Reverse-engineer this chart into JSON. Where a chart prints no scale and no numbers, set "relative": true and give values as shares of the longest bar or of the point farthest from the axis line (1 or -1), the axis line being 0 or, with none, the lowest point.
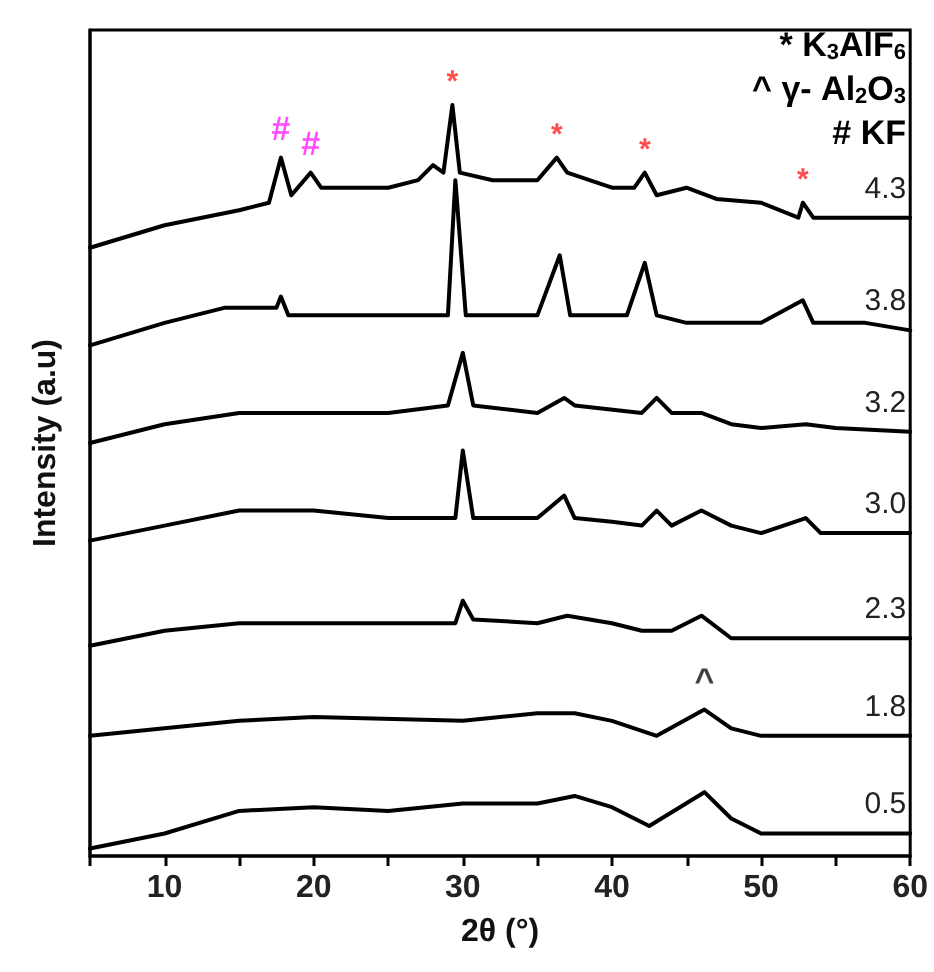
{
  "chart_data": {
    "type": "line",
    "relative": true,
    "xlabel": "2θ (°)",
    "ylabel": "Intensity (a.u)",
    "xlim": [
      5,
      60
    ],
    "xticks": [
      {
        "value": 5,
        "label": null
      },
      10,
      {
        "value": 15,
        "label": null
      },
      20,
      {
        "value": 25,
        "label": null
      },
      30,
      {
        "value": 35,
        "label": null
      },
      40,
      {
        "value": 45,
        "label": null
      },
      50,
      {
        "value": 55,
        "label": null
      },
      60
    ],
    "grid": false,
    "legend": false,
    "marker": "none",
    "line_style": "solid",
    "annotations": [
      {
        "text": "* K$_{3}$AlF$_{6}$"
      },
      {
        "text": "^ γ- Al$_{2}$O$_{3}$"
      },
      {
        "text": "# KF"
      },
      {
        "text": "*",
        "x": 29.3,
        "y": 1.0
      },
      {
        "text": "*",
        "x": 36.3,
        "y": 0.93
      },
      {
        "text": "*",
        "x": 42.2,
        "y": 0.91
      },
      {
        "text": "*",
        "x": 52.8,
        "y": 0.87
      },
      {
        "text": "#",
        "x": 17.8,
        "y": 0.93
      },
      {
        "text": "#",
        "x": 19.8,
        "y": 0.91
      },
      {
        "text": "^",
        "x": 46.2,
        "y": 0.195
      }
    ],
    "series": [
      {
        "name": "4.3",
        "color": "#000000",
        "x": [
          5,
          10,
          15,
          17,
          17.8,
          18.5,
          19.8,
          20.5,
          25,
          27,
          28,
          28.7,
          29.3,
          29.8,
          32,
          35,
          36.3,
          37,
          40,
          41.5,
          42.2,
          43,
          45,
          47,
          50,
          52.5,
          52.8,
          53.5,
          57,
          60
        ],
        "values": [
          0.81,
          0.84,
          0.86,
          0.87,
          0.93,
          0.88,
          0.91,
          0.89,
          0.89,
          0.9,
          0.92,
          0.91,
          1.0,
          0.91,
          0.9,
          0.9,
          0.93,
          0.91,
          0.89,
          0.89,
          0.91,
          0.88,
          0.89,
          0.875,
          0.87,
          0.85,
          0.87,
          0.85,
          0.85,
          0.85
        ]
      },
      {
        "name": "3.8",
        "color": "#000000",
        "x": [
          5,
          10,
          14,
          17.5,
          17.8,
          18.3,
          25,
          29,
          29.5,
          30.2,
          35,
          36.5,
          37.2,
          41,
          42.2,
          43,
          45,
          50,
          52.8,
          53.5,
          57,
          60
        ],
        "values": [
          0.68,
          0.71,
          0.73,
          0.73,
          0.745,
          0.72,
          0.72,
          0.72,
          0.9,
          0.72,
          0.72,
          0.8,
          0.72,
          0.72,
          0.79,
          0.72,
          0.71,
          0.71,
          0.74,
          0.71,
          0.71,
          0.7
        ]
      },
      {
        "name": "3.2",
        "color": "#000000",
        "x": [
          5,
          10,
          15,
          25,
          29,
          30,
          30.7,
          35,
          36.8,
          37.5,
          42,
          43,
          44,
          46,
          48,
          50,
          53,
          55,
          60
        ],
        "values": [
          0.55,
          0.575,
          0.59,
          0.59,
          0.6,
          0.67,
          0.6,
          0.59,
          0.61,
          0.6,
          0.59,
          0.61,
          0.59,
          0.59,
          0.575,
          0.57,
          0.575,
          0.57,
          0.565
        ]
      },
      {
        "name": "3.0",
        "color": "#000000",
        "x": [
          5,
          10,
          15,
          20,
          25,
          29.5,
          30,
          30.7,
          35,
          36.8,
          37.5,
          40,
          42,
          43,
          44,
          46,
          48,
          50,
          53,
          54,
          57,
          60
        ],
        "values": [
          0.42,
          0.44,
          0.46,
          0.46,
          0.45,
          0.45,
          0.54,
          0.45,
          0.45,
          0.48,
          0.45,
          0.445,
          0.44,
          0.46,
          0.44,
          0.46,
          0.44,
          0.43,
          0.45,
          0.43,
          0.43,
          0.43
        ]
      },
      {
        "name": "2.3",
        "color": "#000000",
        "x": [
          5,
          10,
          15,
          25,
          29.5,
          30,
          30.7,
          35,
          37,
          40,
          42,
          44,
          46,
          48,
          50,
          55,
          60
        ],
        "values": [
          0.28,
          0.3,
          0.31,
          0.31,
          0.31,
          0.34,
          0.315,
          0.31,
          0.32,
          0.31,
          0.3,
          0.3,
          0.32,
          0.29,
          0.29,
          0.29,
          0.29
        ]
      },
      {
        "name": "1.8",
        "color": "#000000",
        "x": [
          5,
          10,
          15,
          20,
          30,
          35,
          37.5,
          40,
          43,
          46.2,
          48,
          50,
          55,
          60
        ],
        "values": [
          0.16,
          0.17,
          0.18,
          0.185,
          0.18,
          0.19,
          0.19,
          0.18,
          0.16,
          0.195,
          0.17,
          0.16,
          0.16,
          0.16
        ]
      },
      {
        "name": "0.5",
        "color": "#000000",
        "x": [
          5,
          10,
          15,
          20,
          25,
          30,
          35,
          37.5,
          40,
          42.5,
          46.2,
          48,
          50,
          55,
          60
        ],
        "values": [
          0.01,
          0.03,
          0.06,
          0.065,
          0.06,
          0.07,
          0.07,
          0.08,
          0.065,
          0.04,
          0.085,
          0.05,
          0.03,
          0.03,
          0.03
        ]
      }
    ]
  }
}
